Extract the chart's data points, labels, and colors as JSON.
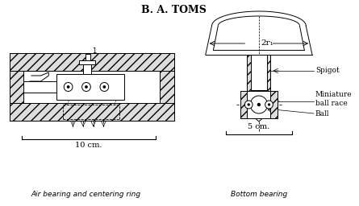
{
  "title": "B. A. TOMS",
  "title_fontsize": 9,
  "bg_color": "#ffffff",
  "line_color": "#000000",
  "label_left": "Air bearing and centering ring",
  "label_right": "Bottom bearing",
  "scale_left_text": "10 cm.",
  "scale_right_text": "5 cm.",
  "annotation_spigot": "Spigot",
  "annotation_ballrace": "Miniature\nball race",
  "annotation_ball": "Ball",
  "annotation_2r1": "2r₁"
}
